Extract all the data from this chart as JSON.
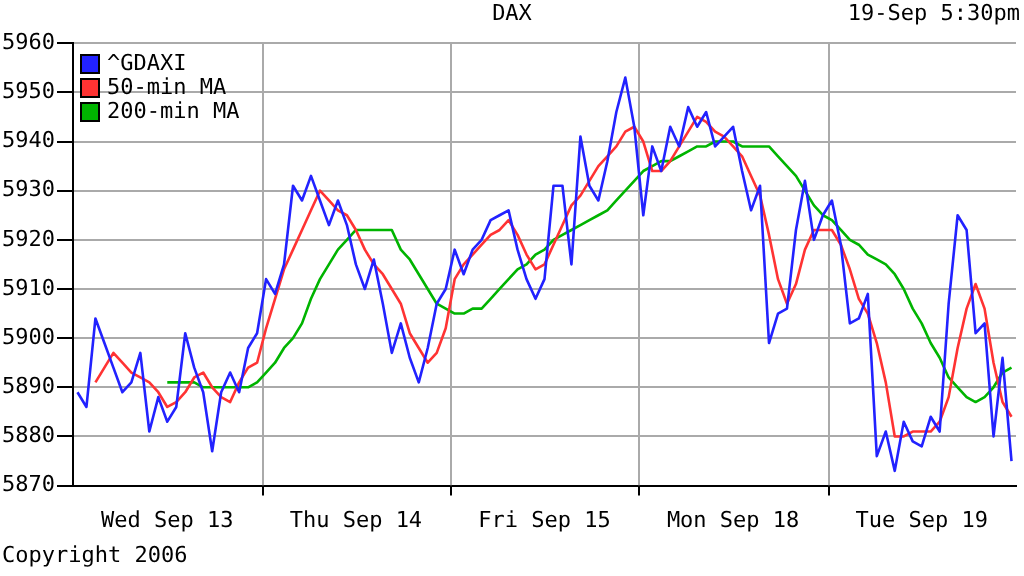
{
  "chart_data": {
    "type": "line",
    "title": "DAX",
    "subtitle": "19-Sep 5:30pm",
    "annotations": [
      "Copyright 2006"
    ],
    "categories": [
      null,
      null,
      null,
      null,
      null,
      null,
      null,
      null,
      null,
      null,
      "Wed Sep 13",
      null,
      null,
      null,
      null,
      null,
      null,
      null,
      null,
      null,
      null,
      null,
      null,
      null,
      null,
      null,
      null,
      null,
      null,
      null,
      null,
      "Thu Sep 14",
      null,
      null,
      null,
      null,
      null,
      null,
      null,
      null,
      null,
      null,
      null,
      null,
      null,
      null,
      null,
      null,
      null,
      null,
      null,
      null,
      "Fri Sep 15",
      null,
      null,
      null,
      null,
      null,
      null,
      null,
      null,
      null,
      null,
      null,
      null,
      null,
      null,
      null,
      null,
      null,
      null,
      null,
      null,
      "Mon Sep 18",
      null,
      null,
      null,
      null,
      null,
      null,
      null,
      null,
      null,
      null,
      null,
      null,
      null,
      null,
      null,
      null,
      null,
      null,
      null,
      null,
      "Tue Sep 19",
      null,
      null,
      null,
      null,
      null,
      null,
      null,
      null,
      null,
      null
    ],
    "ylim": [
      5870,
      5960
    ],
    "yticks": [
      5870,
      5880,
      5890,
      5900,
      5910,
      5920,
      5930,
      5940,
      5950,
      5960
    ],
    "grid": true,
    "legend": "top left",
    "marker": "none",
    "line_style": "solid",
    "series": [
      {
        "name": "^GDAXI",
        "color": "#2222ff",
        "values": [
          5889,
          5886,
          5904,
          5899,
          5894,
          5889,
          5891,
          5897,
          5881,
          5888,
          5883,
          5886,
          5901,
          5894,
          5889,
          5877,
          5889,
          5893,
          5889,
          5898,
          5901,
          5912,
          5909,
          5915,
          5931,
          5928,
          5933,
          5928,
          5923,
          5928,
          5923,
          5915,
          5910,
          5916,
          5907,
          5897,
          5903,
          5896,
          5891,
          5898,
          5907,
          5910,
          5918,
          5913,
          5918,
          5920,
          5924,
          5925,
          5926,
          5918,
          5912,
          5908,
          5912,
          5931,
          5931,
          5915,
          5941,
          5931,
          5928,
          5936,
          5946,
          5953,
          5943,
          5925,
          5939,
          5934,
          5943,
          5939,
          5947,
          5943,
          5946,
          5939,
          5941,
          5943,
          5934,
          5926,
          5931,
          5899,
          5905,
          5906,
          5922,
          5932,
          5920,
          5925,
          5928,
          5919,
          5903,
          5904,
          5909,
          5876,
          5881,
          5873,
          5883,
          5879,
          5878,
          5884,
          5881,
          5907,
          5925,
          5922,
          5901,
          5903,
          5880,
          5896,
          5875
        ]
      },
      {
        "name": "50-min MA",
        "color": "#ff3333",
        "values": [
          null,
          null,
          5891,
          5894,
          5897,
          5895,
          5893,
          5892,
          5891,
          5889,
          5886,
          5887,
          5889,
          5892,
          5893,
          5890,
          5888,
          5887,
          5891,
          5894,
          5895,
          5902,
          5908,
          5914,
          5918,
          5922,
          5926,
          5930,
          5928,
          5926,
          5925,
          5922,
          5918,
          5915,
          5913,
          5910,
          5907,
          5901,
          5898,
          5895,
          5897,
          5902,
          5912,
          5915,
          5917,
          5919,
          5921,
          5922,
          5924,
          5921,
          5917,
          5914,
          5915,
          5919,
          5923,
          5927,
          5929,
          5932,
          5935,
          5937,
          5939,
          5942,
          5943,
          5940,
          5934,
          5934,
          5936,
          5939,
          5942,
          5945,
          5944,
          5942,
          5941,
          5939,
          5937,
          5933,
          5929,
          5921,
          5912,
          5907,
          5911,
          5918,
          5922,
          5922,
          5922,
          5919,
          5914,
          5908,
          5905,
          5899,
          5891,
          5880,
          5880,
          5881,
          5881,
          5881,
          5883,
          5888,
          5898,
          5906,
          5911,
          5906,
          5895,
          5887,
          5884
        ]
      },
      {
        "name": "200-min MA",
        "color": "#00b400",
        "values": [
          null,
          null,
          null,
          null,
          null,
          null,
          null,
          null,
          null,
          null,
          5891,
          5891,
          5891,
          5891,
          5890,
          5890,
          5890,
          5890,
          5890,
          5890,
          5891,
          5893,
          5895,
          5898,
          5900,
          5903,
          5908,
          5912,
          5915,
          5918,
          5920,
          5922,
          5922,
          5922,
          5922,
          5922,
          5918,
          5916,
          5913,
          5910,
          5907,
          5906,
          5905,
          5905,
          5906,
          5906,
          5908,
          5910,
          5912,
          5914,
          5915,
          5917,
          5918,
          5920,
          5921,
          5922,
          5923,
          5924,
          5925,
          5926,
          5928,
          5930,
          5932,
          5934,
          5935,
          5936,
          5936,
          5937,
          5938,
          5939,
          5939,
          5940,
          5940,
          5940,
          5939,
          5939,
          5939,
          5939,
          5937,
          5935,
          5933,
          5930,
          5927,
          5925,
          5924,
          5922,
          5920,
          5919,
          5917,
          5916,
          5915,
          5913,
          5910,
          5906,
          5903,
          5899,
          5896,
          5892,
          5890,
          5888,
          5887,
          5888,
          5890,
          5893,
          5894
        ]
      }
    ]
  }
}
